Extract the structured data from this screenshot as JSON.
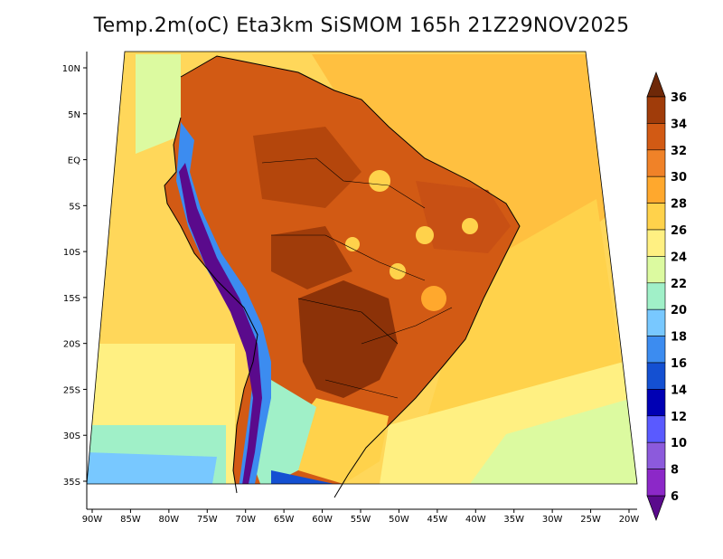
{
  "title": "Temp.2m(oC) Eta3km SiSMOM 165h 21Z29NOV2025",
  "map": {
    "lon_range": [
      -90,
      -20
    ],
    "lat_range": [
      -37.5,
      11
    ],
    "lon_ticks": [
      "90W",
      "85W",
      "80W",
      "75W",
      "70W",
      "65W",
      "60W",
      "55W",
      "50W",
      "45W",
      "40W",
      "35W",
      "30W",
      "25W",
      "20W"
    ],
    "lat_ticks": [
      "10N",
      "5N",
      "EQ",
      "5S",
      "10S",
      "15S",
      "20S",
      "25S",
      "30S",
      "35S"
    ]
  },
  "colorbar": {
    "levels": [
      "6",
      "8",
      "10",
      "12",
      "14",
      "16",
      "18",
      "20",
      "22",
      "24",
      "26",
      "28",
      "30",
      "32",
      "34",
      "36"
    ],
    "colors": [
      "#5a0a8c",
      "#8c28c8",
      "#8c5adc",
      "#5a5aff",
      "#0000b4",
      "#1450d2",
      "#3c8cf0",
      "#78c8ff",
      "#a0f0c8",
      "#dcfaa0",
      "#fff082",
      "#ffd24b",
      "#ffa82d",
      "#f08228",
      "#d25a14",
      "#a03c0a",
      "#6e2808"
    ]
  },
  "colors": {
    "ocean_warm": "#ffd24b",
    "ocean_mid": "#fff082",
    "land_hot": "#d25a14",
    "land_very_hot": "#a03c0a"
  }
}
